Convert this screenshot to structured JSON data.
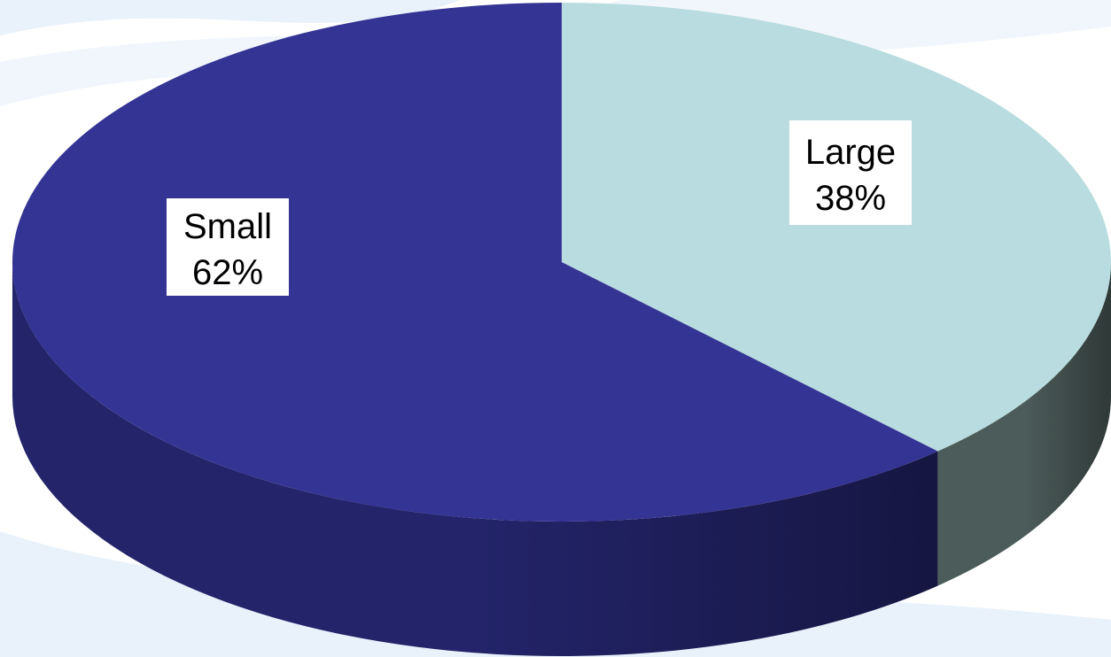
{
  "chart_data": {
    "type": "pie",
    "style": "3d",
    "start_angle": "12 o'clock",
    "direction": "clockwise",
    "slices": [
      {
        "label": "Large",
        "value": 38,
        "value_text": "38%",
        "color": "#b8dcdf",
        "side_color": "#4c5c5a"
      },
      {
        "label": "Small",
        "value": 62,
        "value_text": "62%",
        "color": "#343494",
        "side_color": "#23246a"
      }
    ]
  },
  "theme": {
    "background_wash": "#e9f2fb"
  }
}
